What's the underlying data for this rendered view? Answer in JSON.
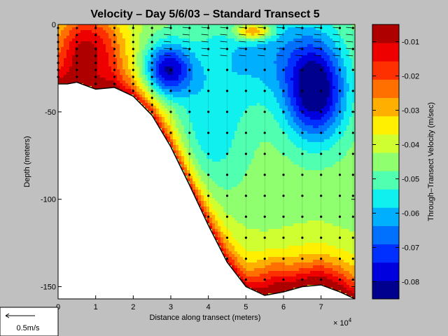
{
  "chart_data": {
    "type": "heatmap",
    "title": "Velocity – Day 5/6/03 – Standard Transect 5",
    "xlabel": "Distance along transect (meters)",
    "x_exponent_label": "× 10",
    "x_exponent_power": "4",
    "ylabel": "Depth (meters)",
    "colorbar_label": "Through–Transect Velocity (m/sec)",
    "xlim": [
      0,
      79000
    ],
    "ylim": [
      -157,
      0
    ],
    "clim": [
      -0.085,
      -0.005
    ],
    "x_ticks": [
      0,
      10000,
      20000,
      30000,
      40000,
      50000,
      60000,
      70000
    ],
    "x_tick_labels": [
      "0",
      "1",
      "2",
      "3",
      "4",
      "5",
      "6",
      "7"
    ],
    "y_ticks": [
      0,
      -50,
      -100,
      -150
    ],
    "y_tick_labels": [
      "0",
      "-50",
      "-100",
      "-150"
    ],
    "colorbar_ticks": [
      -0.01,
      -0.02,
      -0.03,
      -0.04,
      -0.05,
      -0.06,
      -0.07,
      -0.08
    ],
    "colorbar_tick_labels": [
      "-0.01",
      "-0.02",
      "-0.03",
      "-0.04",
      "-0.05",
      "-0.06",
      "-0.07",
      "-0.08"
    ],
    "colormap": [
      "#00008f",
      "#0000df",
      "#0030ff",
      "#0070ff",
      "#00b0ff",
      "#10f0ef",
      "#50ffaf",
      "#90ff6f",
      "#cfff30",
      "#ffef00",
      "#ffaf00",
      "#ff7000",
      "#ff3000",
      "#ef0000",
      "#af0000"
    ],
    "bottom_profile": [
      {
        "x": 0,
        "depth": -34
      },
      {
        "x": 2500,
        "depth": -34
      },
      {
        "x": 5000,
        "depth": -33
      },
      {
        "x": 10000,
        "depth": -37
      },
      {
        "x": 15000,
        "depth": -36
      },
      {
        "x": 20000,
        "depth": -41
      },
      {
        "x": 25000,
        "depth": -52
      },
      {
        "x": 30000,
        "depth": -70
      },
      {
        "x": 35000,
        "depth": -92
      },
      {
        "x": 40000,
        "depth": -115
      },
      {
        "x": 45000,
        "depth": -136
      },
      {
        "x": 50000,
        "depth": -150
      },
      {
        "x": 55000,
        "depth": -155
      },
      {
        "x": 60000,
        "depth": -153
      },
      {
        "x": 65000,
        "depth": -150
      },
      {
        "x": 70000,
        "depth": -149
      },
      {
        "x": 75000,
        "depth": -153
      },
      {
        "x": 79000,
        "depth": -157
      }
    ],
    "velocity_field": {
      "background": -0.045,
      "features": [
        {
          "x": 29000,
          "depth": -26,
          "sx": 6500,
          "sy": 15,
          "amp": -0.035
        },
        {
          "x": 68500,
          "depth": -38,
          "sx": 8000,
          "sy": 28,
          "amp": -0.04
        },
        {
          "x": 55000,
          "depth": -15,
          "sx": 15000,
          "sy": 30,
          "amp": -0.015
        },
        {
          "x": 40000,
          "depth": -60,
          "sx": 10000,
          "sy": 40,
          "amp": -0.012
        },
        {
          "x": 8000,
          "depth": -12,
          "sx": 9000,
          "sy": 22,
          "amp": 0.03
        },
        {
          "x": 52000,
          "depth": -4,
          "sx": 5000,
          "sy": 5,
          "amp": 0.03
        },
        {
          "x": 70000,
          "depth": -150,
          "sx": 10000,
          "sy": 18,
          "amp": 0.012
        },
        {
          "x": 57000,
          "depth": -145,
          "sx": 5000,
          "sy": 14,
          "amp": 0.01
        }
      ],
      "bottom_boundary_layer": {
        "thickness": 14,
        "amp": 0.035
      }
    },
    "station_x": [
      0,
      5000,
      10000,
      15000,
      20000,
      25000,
      30000,
      35000,
      40000,
      45000,
      50000,
      55000,
      60000,
      65000,
      70000,
      75000,
      78500
    ],
    "bin_spacing_depth": 4,
    "station_bin_spacing": 12
  },
  "scale_legend": {
    "label": "0.5m/s"
  }
}
